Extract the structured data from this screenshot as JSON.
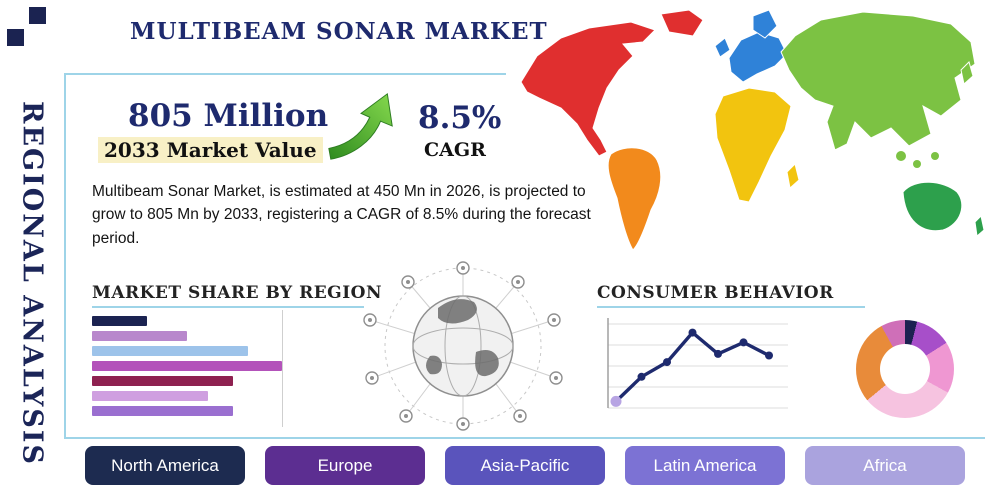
{
  "header": {
    "title": "MULTIBEAM SONAR MARKET",
    "side_label": "REGIONAL ANALYSIS"
  },
  "stats": {
    "market_value": "805 Million",
    "market_value_label": "2033 Market Value",
    "cagr_value": "8.5%",
    "cagr_label": "CAGR",
    "description": "Multibeam Sonar Market, is estimated at 450 Mn in 2026, is projected to grow to 805 Mn by 2033, registering a CAGR of 8.5% during the forecast period."
  },
  "chart_data": [
    {
      "type": "bar",
      "orientation": "horizontal",
      "title": "MARKET SHARE BY REGION",
      "values": [
        29,
        50,
        82,
        100,
        74,
        61,
        74
      ],
      "colors": [
        "#1b2351",
        "#b887cc",
        "#9dc3ea",
        "#b352ba",
        "#8e2150",
        "#cf9fe0",
        "#9a6fd0"
      ],
      "xlabel": "",
      "ylabel": "",
      "grid": true
    },
    {
      "type": "line",
      "title": "CONSUMER BEHAVIOR",
      "x": [
        1,
        2,
        3,
        4,
        5,
        6,
        7
      ],
      "y": [
        0.4,
        1.9,
        2.8,
        4.6,
        3.3,
        4.0,
        3.2
      ],
      "ylim": [
        0,
        5
      ],
      "color": "#1e2a6e",
      "first_point_color": "#b7a4e3",
      "grid": true
    },
    {
      "type": "pie",
      "title": "Regional share donut",
      "slices": [
        {
          "color": "#1c2151",
          "value": 4
        },
        {
          "color": "#a74fc9",
          "value": 12
        },
        {
          "color": "#ef97d2",
          "value": 17
        },
        {
          "color": "#f6c3e0",
          "value": 31
        },
        {
          "color": "#e88b3a",
          "value": 28
        },
        {
          "color": "#cf6fb8",
          "value": 8
        }
      ]
    }
  ],
  "regions": [
    {
      "label": "North America",
      "color": "#1d2b50"
    },
    {
      "label": "Europe",
      "color": "#5c2e91"
    },
    {
      "label": "Asia-Pacific",
      "color": "#5a54bc"
    },
    {
      "label": "Latin America",
      "color": "#7c72d4"
    },
    {
      "label": "Africa",
      "color": "#aaa3de"
    }
  ],
  "map": {
    "colors": {
      "north_america": "#e02f2f",
      "south_america": "#f28a1c",
      "europe": "#2f82d8",
      "africa": "#f2c40f",
      "asia": "#7cc243",
      "australia": "#2da04c"
    }
  },
  "theme": {
    "navy": "#1e2a6e",
    "accent_line": "#9ed4e8",
    "arrow_green": "#4caf32"
  }
}
